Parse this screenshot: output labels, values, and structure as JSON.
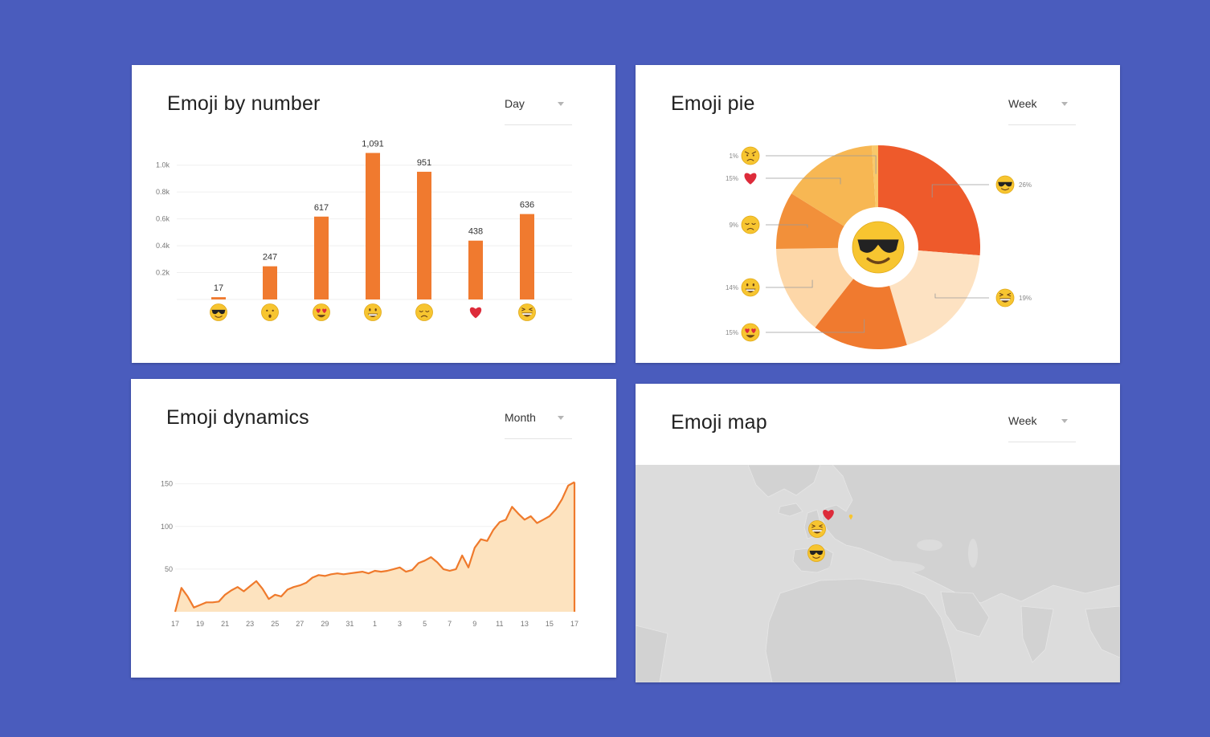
{
  "colors": {
    "background": "#4a5cbd",
    "bar": "#f07a2f",
    "line": "#ef7a2c",
    "area": "#fde3bf",
    "emoji_face": "#f7c530",
    "heart": "#dd2b3a",
    "map_land": "#d2d2d2",
    "map_water": "#dcdcdc"
  },
  "cards": {
    "bar": {
      "title": "Emoji by number",
      "dropdown": "Day"
    },
    "pie": {
      "title": "Emoji pie",
      "dropdown": "Week"
    },
    "line": {
      "title": "Emoji dynamics",
      "dropdown": "Month"
    },
    "map": {
      "title": "Emoji map",
      "dropdown": "Week"
    }
  },
  "chart_data": [
    {
      "type": "bar",
      "categories": [
        "sunglasses-face",
        "worried-face",
        "heart-eyes-face",
        "grinning-face",
        "disappointed-face",
        "red-heart",
        "laughing-face"
      ],
      "values": [
        17,
        247,
        617,
        1091,
        951,
        438,
        636
      ],
      "value_labels": [
        "17",
        "247",
        "617",
        "1,091",
        "951",
        "438",
        "636"
      ],
      "ytick_labels": [
        "0.2k",
        "0.4k",
        "0.6k",
        "0.8k",
        "1.0k"
      ],
      "yticks": [
        200,
        400,
        600,
        800,
        1000
      ],
      "ylim": [
        0,
        1100
      ],
      "grid": true
    },
    {
      "type": "pie",
      "center_icon": "sunglasses-face",
      "slices": [
        {
          "icon": "sunglasses-face",
          "percent": 26,
          "label": "26%",
          "color": "#ee5a2b"
        },
        {
          "icon": "laughing-face",
          "percent": 19,
          "label": "19%",
          "color": "#fde2c2"
        },
        {
          "icon": "heart-eyes-face",
          "percent": 15,
          "label": "15%",
          "color": "#f07a2f"
        },
        {
          "icon": "grinning-face",
          "percent": 14,
          "label": "14%",
          "color": "#fdd7a8"
        },
        {
          "icon": "disappointed-face",
          "percent": 9,
          "label": "9%",
          "color": "#f2903a"
        },
        {
          "icon": "red-heart",
          "percent": 15,
          "label": "15%",
          "color": "#f7b753"
        },
        {
          "icon": "angry-face",
          "percent": 1,
          "label": "1%",
          "color": "#f9c86a"
        }
      ]
    },
    {
      "type": "area",
      "xtick_labels": [
        "17",
        "19",
        "21",
        "23",
        "25",
        "27",
        "29",
        "31",
        "1",
        "3",
        "5",
        "7",
        "9",
        "11",
        "13",
        "15",
        "17"
      ],
      "x": [
        0,
        0.5,
        1,
        1.5,
        2,
        2.5,
        3,
        3.5,
        4,
        4.5,
        5,
        5.5,
        6,
        6.5,
        7,
        7.5,
        8,
        8.5,
        9,
        9.5,
        10,
        10.5,
        11,
        11.5,
        12,
        12.5,
        13,
        13.5,
        14,
        14.5,
        15,
        15.5,
        16,
        16.5,
        17,
        17.5,
        18,
        18.5,
        19,
        19.5,
        20,
        20.5,
        21,
        21.5,
        22,
        22.5,
        23,
        23.5,
        24,
        24.5,
        25,
        25.5,
        26,
        26.5,
        27,
        27.5,
        28,
        28.5,
        29,
        29.5,
        30,
        30.5,
        31,
        31.5,
        32
      ],
      "values": [
        0,
        28,
        18,
        5,
        8,
        11,
        11,
        12,
        20,
        25,
        29,
        24,
        30,
        36,
        27,
        15,
        20,
        18,
        26,
        29,
        31,
        34,
        40,
        43,
        42,
        44,
        45,
        44,
        45,
        46,
        47,
        45,
        48,
        47,
        48,
        50,
        52,
        47,
        49,
        57,
        60,
        64,
        58,
        50,
        48,
        50,
        66,
        52,
        75,
        85,
        83,
        96,
        105,
        108,
        123,
        115,
        108,
        112,
        104,
        108,
        112,
        120,
        132,
        148,
        152
      ],
      "ytick_labels": [
        "50",
        "100",
        "150"
      ],
      "yticks": [
        50,
        100,
        150
      ],
      "ylim": [
        0,
        160
      ],
      "grid": true
    }
  ],
  "map": {
    "markers": [
      {
        "icon": "red-heart"
      },
      {
        "icon": "laughing-face"
      },
      {
        "icon": "sunglasses-face"
      },
      {
        "icon": "yellow-pin"
      }
    ]
  }
}
